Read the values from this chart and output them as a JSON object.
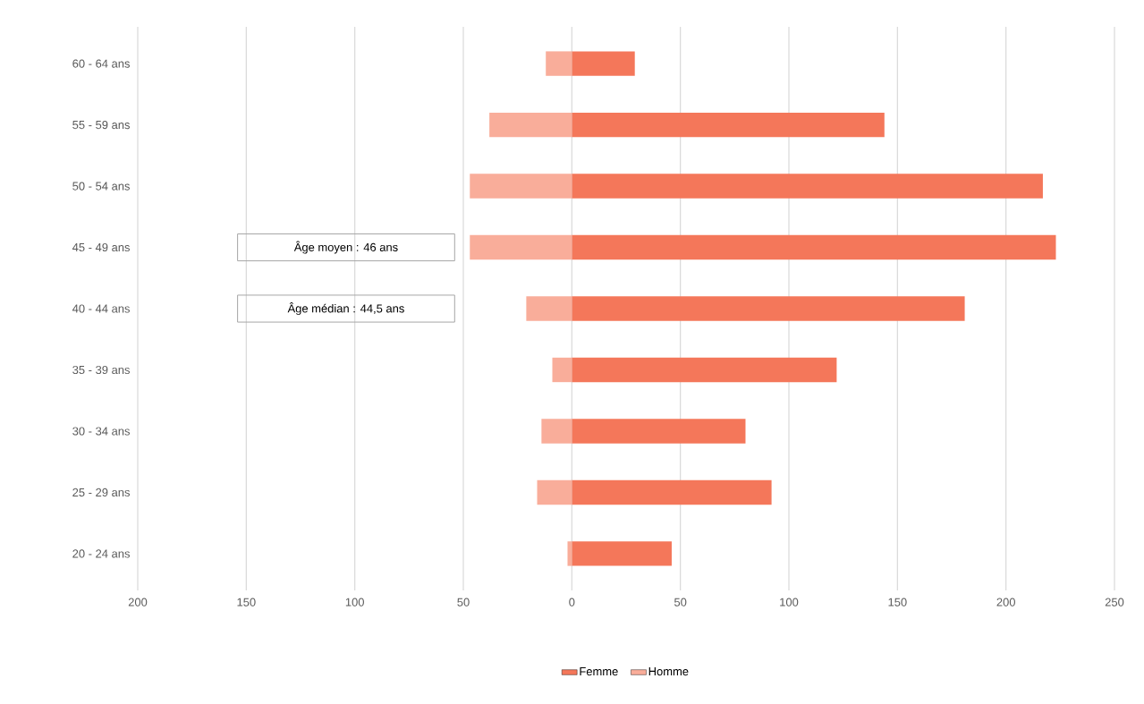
{
  "chart_data": {
    "type": "bar",
    "orientation": "horizontal",
    "stacked": true,
    "categories": [
      "60 - 64 ans",
      "55 - 59 ans",
      "50 - 54 ans",
      "45 - 49 ans",
      "40 - 44 ans",
      "35 - 39 ans",
      "30 - 34 ans",
      "25 - 29 ans",
      "20 - 24 ans"
    ],
    "series": [
      {
        "name": "Femme",
        "color": "#f4775a",
        "values": [
          29,
          144,
          217,
          223,
          181,
          122,
          80,
          92,
          46
        ]
      },
      {
        "name": "Homme",
        "color": "#f9ad9a",
        "values": [
          -12,
          -38,
          -47,
          -47,
          -21,
          -9,
          -14,
          -16,
          -2
        ]
      }
    ],
    "xlim": [
      -200,
      250
    ],
    "xticks": [
      {
        "value": -200,
        "label": "200"
      },
      {
        "value": -150,
        "label": "150"
      },
      {
        "value": -100,
        "label": "100"
      },
      {
        "value": -50,
        "label": "50"
      },
      0,
      50,
      100,
      150,
      200,
      250
    ],
    "grid": "x",
    "legend": "bottom",
    "annotations": [
      "Âge moyen : 46 ans",
      "Âge médian : 44,5 ans"
    ]
  }
}
